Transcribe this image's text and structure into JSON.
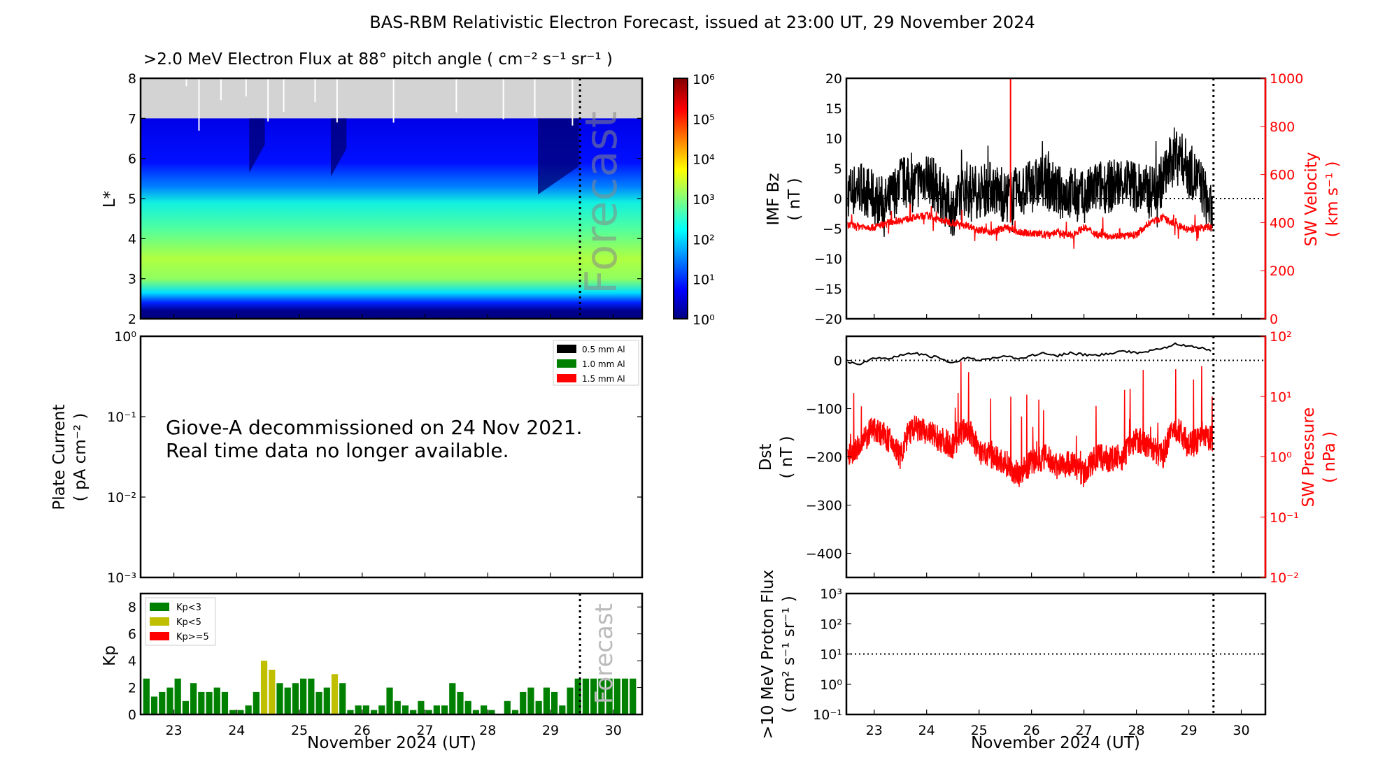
{
  "title": "BAS-RBM Relativistic Electron Forecast, issued at 23:00 UT, 29 November 2024",
  "forecast_label": "Forecast",
  "xlabel": "November 2024 (UT)",
  "giove_note": [
    "Giove-A decommissioned on 24 Nov 2021.",
    "Real time data no longer available."
  ],
  "colors": {
    "red": "#ff0000",
    "green": "#008000",
    "olive": "#bfbf00",
    "nodata": "#d3d3d3"
  },
  "chart_data": [
    {
      "type": "heatmap",
      "title": ">2.0 MeV Electron Flux at 88° pitch angle ( cm⁻² s⁻¹ sr⁻¹ )",
      "ylabel": "L*",
      "ylim": [
        2,
        8
      ],
      "yticks": [
        "2",
        "3",
        "4",
        "5",
        "6",
        "7",
        "8"
      ],
      "xlim": [
        22.47,
        30.46
      ],
      "colorbar": {
        "scale": "log",
        "range": [
          1,
          1000000
        ],
        "ticks": [
          "10⁰",
          "10¹",
          "10²",
          "10³",
          "10⁴",
          "10⁵",
          "10⁶"
        ]
      },
      "no_data_above_L": 7,
      "forecast_start": 29.47
    },
    {
      "type": "line",
      "ylabel": [
        "Plate Current",
        "( pA cm⁻² )"
      ],
      "yscale": "log",
      "ylim": [
        0.001,
        1
      ],
      "yticks": [
        "10⁻³",
        "10⁻²",
        "10⁻¹",
        "10⁰"
      ],
      "legend": [
        "0.5 mm Al",
        "1.0 mm Al",
        "1.5 mm Al"
      ],
      "legend_colors": [
        "#000000",
        "#008000",
        "#ff0000"
      ],
      "legend_position": "top-right"
    },
    {
      "type": "bar",
      "ylabel": "Kp",
      "ylim": [
        0,
        9
      ],
      "yticks": [
        "0",
        "2",
        "4",
        "6",
        "8"
      ],
      "xticks": [
        "23",
        "24",
        "25",
        "26",
        "27",
        "28",
        "29",
        "30"
      ],
      "start": 22.5,
      "bin_days": 0.125,
      "values": [
        2.67,
        1.33,
        1.67,
        2,
        2.67,
        1,
        2.33,
        1.67,
        1.67,
        2,
        1.67,
        0.33,
        0.33,
        0.67,
        1.67,
        4,
        3.33,
        2.33,
        2,
        2.33,
        2.67,
        2.67,
        1.67,
        2,
        3,
        2.33,
        0.33,
        0.67,
        0.67,
        0.33,
        0.67,
        2,
        1,
        0.67,
        0.33,
        1,
        0.33,
        0.67,
        0.67,
        2.33,
        1.67,
        1,
        0.33,
        0.67,
        0.33,
        0,
        1,
        0.33,
        1.67,
        2,
        1,
        2,
        1.67,
        0.67,
        2,
        2.67,
        2.67,
        2.67,
        2.67,
        2.67,
        2.67,
        2.67,
        2.67
      ],
      "legend": [
        "Kp<3",
        "Kp<5",
        "Kp>=5"
      ],
      "legend_position": "top-left"
    },
    {
      "type": "line",
      "ylabel": [
        "IMF Bz",
        "( nT )"
      ],
      "ylim": [
        -20,
        20
      ],
      "yticks": [
        "−20",
        "−15",
        "−10",
        "−5",
        "0",
        "5",
        "10",
        "15",
        "20"
      ],
      "y2label": [
        "SW Velocity",
        "( km s⁻¹ )"
      ],
      "y2lim": [
        0,
        1000
      ],
      "y2ticks": [
        "0",
        "200",
        "400",
        "600",
        "800",
        "1000"
      ],
      "x": [
        22.5,
        22.75,
        23,
        23.25,
        23.5,
        23.75,
        24,
        24.25,
        24.5,
        24.75,
        25,
        25.25,
        25.5,
        25.75,
        26,
        26.25,
        26.5,
        26.75,
        27,
        27.25,
        27.5,
        27.75,
        28,
        28.25,
        28.5,
        28.75,
        29,
        29.25,
        29.45
      ],
      "series": [
        {
          "name": "IMF Bz",
          "values": [
            1,
            2,
            0,
            -1,
            3,
            2,
            4,
            1,
            -2,
            2,
            1,
            2,
            0,
            1,
            2,
            3,
            1,
            1,
            0,
            2,
            2,
            3,
            2,
            1,
            3,
            8,
            5,
            2,
            -3
          ]
        },
        {
          "name": "SW Velocity",
          "values": [
            390,
            385,
            380,
            400,
            410,
            420,
            430,
            410,
            400,
            390,
            370,
            360,
            380,
            360,
            355,
            350,
            360,
            345,
            380,
            350,
            345,
            345,
            350,
            400,
            420,
            390,
            370,
            380,
            380
          ]
        }
      ]
    },
    {
      "type": "line",
      "ylabel": [
        "Dst",
        "( nT )"
      ],
      "ylim": [
        -450,
        50
      ],
      "yticks": [
        "−400",
        "−300",
        "−200",
        "−100",
        "0"
      ],
      "y2label": [
        "SW Pressure",
        "( nPa )"
      ],
      "y2scale": "log",
      "y2lim": [
        0.01,
        100
      ],
      "y2ticks": [
        "10⁻²",
        "10⁻¹",
        "10⁰",
        "10¹",
        "10²"
      ],
      "x": [
        22.5,
        22.75,
        23,
        23.25,
        23.5,
        23.75,
        24,
        24.25,
        24.5,
        24.75,
        25,
        25.25,
        25.5,
        25.75,
        26,
        26.25,
        26.5,
        26.75,
        27,
        27.25,
        27.5,
        27.75,
        28,
        28.25,
        28.5,
        28.75,
        29,
        29.25,
        29.45
      ],
      "series": [
        {
          "name": "Dst",
          "values": [
            -5,
            -8,
            5,
            2,
            10,
            15,
            10,
            5,
            -5,
            5,
            0,
            5,
            10,
            2,
            10,
            15,
            10,
            15,
            12,
            10,
            15,
            20,
            15,
            20,
            25,
            35,
            30,
            25,
            20
          ]
        },
        {
          "name": "SW Pressure",
          "values": [
            1,
            1.5,
            3,
            2,
            1,
            3,
            2.5,
            2,
            1.5,
            3,
            1.2,
            1,
            0.8,
            0.5,
            0.8,
            1,
            0.7,
            0.8,
            0.5,
            1,
            0.9,
            1,
            2,
            1.5,
            1,
            3,
            1.5,
            2,
            2
          ]
        }
      ]
    },
    {
      "type": "line",
      "ylabel": [
        ">10 MeV Proton Flux",
        "( cm² s⁻¹ sr⁻¹ )"
      ],
      "yscale": "log",
      "ylim": [
        0.1,
        1000
      ],
      "yticks": [
        "10⁻¹",
        "10⁰",
        "10¹",
        "10²",
        "10³"
      ],
      "xticks": [
        "23",
        "24",
        "25",
        "26",
        "27",
        "28",
        "29",
        "30"
      ],
      "threshold": 10,
      "series": []
    }
  ]
}
